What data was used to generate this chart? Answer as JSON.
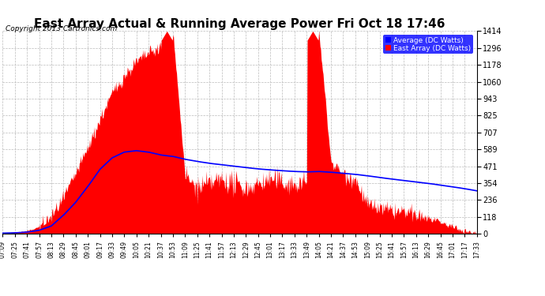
{
  "title": "East Array Actual & Running Average Power Fri Oct 18 17:46",
  "copyright": "Copyright 2013 Cartronics.com",
  "legend_avg": "Average (DC Watts)",
  "legend_east": "East Array (DC Watts)",
  "ylabel_right_values": [
    0.0,
    117.8,
    235.7,
    353.5,
    471.4,
    589.2,
    707.0,
    824.9,
    942.7,
    1060.5,
    1178.4,
    1296.2,
    1414.1
  ],
  "ymax": 1414.1,
  "ymin": 0.0,
  "bg_color": "#ffffff",
  "plot_bg_color": "#ffffff",
  "grid_color": "#bbbbbb",
  "fill_color": "#ff0000",
  "avg_line_color": "#0000ff",
  "title_fontsize": 11,
  "xtick_labels": [
    "07:09",
    "07:25",
    "07:41",
    "07:57",
    "08:13",
    "08:29",
    "08:45",
    "09:01",
    "09:17",
    "09:33",
    "09:49",
    "10:05",
    "10:21",
    "10:37",
    "10:53",
    "11:09",
    "11:25",
    "11:41",
    "11:57",
    "12:13",
    "12:29",
    "12:45",
    "13:01",
    "13:17",
    "13:33",
    "13:49",
    "14:05",
    "14:21",
    "14:37",
    "14:53",
    "15:09",
    "15:25",
    "15:41",
    "15:57",
    "16:13",
    "16:29",
    "16:45",
    "17:01",
    "17:17",
    "17:33"
  ],
  "raw_values": [
    5,
    10,
    20,
    50,
    120,
    250,
    420,
    600,
    800,
    980,
    1100,
    1200,
    1260,
    1300,
    1414,
    400,
    320,
    350,
    380,
    350,
    320,
    350,
    380,
    360,
    340,
    360,
    1414,
    500,
    420,
    380,
    200,
    180,
    160,
    150,
    130,
    110,
    80,
    50,
    20,
    5
  ],
  "avg_values": [
    5,
    7,
    12,
    25,
    55,
    130,
    220,
    330,
    450,
    530,
    570,
    580,
    570,
    550,
    540,
    520,
    505,
    492,
    482,
    472,
    462,
    453,
    446,
    440,
    435,
    432,
    435,
    430,
    422,
    415,
    405,
    393,
    382,
    372,
    362,
    352,
    340,
    328,
    315,
    300
  ]
}
